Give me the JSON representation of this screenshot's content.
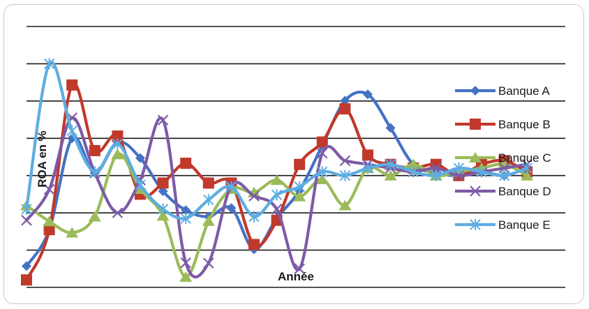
{
  "chart_data": {
    "type": "line",
    "title": "",
    "xlabel": "Année",
    "ylabel": "ROA en %",
    "x": [
      1,
      2,
      3,
      4,
      5,
      6,
      7,
      8,
      9,
      10,
      11,
      12,
      13,
      14,
      15,
      16,
      17,
      18,
      19,
      20,
      21,
      22,
      23
    ],
    "ylim": [
      0,
      7
    ],
    "grid": true,
    "legend_position": "right",
    "smooth": true,
    "series": [
      {
        "name": "Banque A",
        "color": "#4472C4",
        "marker": "diamond",
        "values": [
          0.57,
          1.55,
          4.0,
          3.07,
          3.9,
          3.47,
          2.58,
          2.07,
          1.9,
          2.13,
          1.02,
          1.86,
          2.6,
          3.81,
          5.01,
          5.18,
          4.28,
          3.3,
          3.07,
          3.0,
          3.1,
          3.0,
          3.2
        ]
      },
      {
        "name": "Banque B",
        "color": "#C0392B",
        "marker": "square",
        "values": [
          0.2,
          1.55,
          5.43,
          3.67,
          4.06,
          2.5,
          2.8,
          3.33,
          2.8,
          2.8,
          1.15,
          1.8,
          3.3,
          3.9,
          4.79,
          3.55,
          3.3,
          3.2,
          3.3,
          3.0,
          3.3,
          3.4,
          3.1
        ]
      },
      {
        "name": "Banque C",
        "color": "#9BBB59",
        "marker": "triangle",
        "values": [
          2.2,
          1.77,
          1.47,
          1.9,
          3.57,
          2.64,
          1.92,
          0.28,
          1.78,
          2.64,
          2.55,
          2.88,
          2.44,
          2.9,
          2.2,
          3.2,
          3.0,
          3.3,
          3.0,
          3.1,
          3.2,
          3.3,
          3.0
        ]
      },
      {
        "name": "Banque D",
        "color": "#7D5BA6",
        "marker": "x",
        "values": [
          1.8,
          2.63,
          4.55,
          3.07,
          2.0,
          2.88,
          4.49,
          0.66,
          0.65,
          2.72,
          2.45,
          2.1,
          0.5,
          3.6,
          3.4,
          3.3,
          3.2,
          3.1,
          3.2,
          3.0,
          3.1,
          3.2,
          3.3
        ]
      },
      {
        "name": "Banque E",
        "color": "#5DADE2",
        "marker": "asterisk",
        "values": [
          2.1,
          6.0,
          4.2,
          3.1,
          3.85,
          2.75,
          2.1,
          1.85,
          2.35,
          2.7,
          1.9,
          2.48,
          2.7,
          3.1,
          3.0,
          3.2,
          3.3,
          3.1,
          3.0,
          3.2,
          3.1,
          3.0,
          3.2
        ]
      }
    ]
  }
}
